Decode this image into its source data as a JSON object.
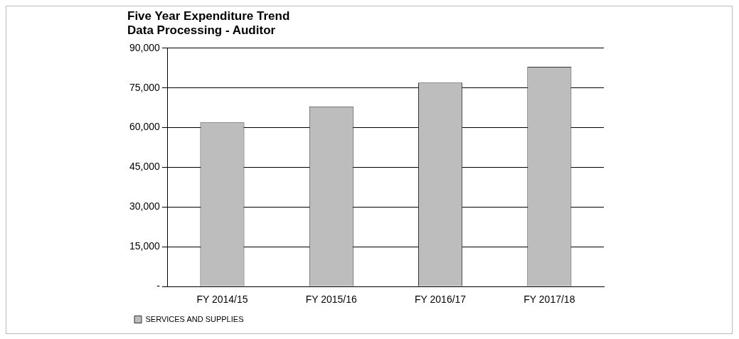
{
  "chart_data": {
    "type": "bar",
    "title": "Five Year Expenditure Trend",
    "subtitle": "Data Processing - Auditor",
    "categories": [
      "FY 2014/15",
      "FY 2015/16",
      "FY 2016/17",
      "FY 2017/18"
    ],
    "series": [
      {
        "name": "SERVICES AND SUPPLIES",
        "color": "#bdbdbd",
        "values": [
          62000,
          68000,
          77000,
          83000
        ]
      }
    ],
    "ylim": [
      0,
      90000
    ],
    "yticks": [
      {
        "value": 0,
        "label": "-"
      },
      {
        "value": 15000,
        "label": "15,000"
      },
      {
        "value": 30000,
        "label": "30,000"
      },
      {
        "value": 45000,
        "label": "45,000"
      },
      {
        "value": 60000,
        "label": "60,000"
      },
      {
        "value": 75000,
        "label": "75,000"
      },
      {
        "value": 90000,
        "label": "90,000"
      }
    ],
    "grid": "y",
    "legend": "bottom"
  }
}
